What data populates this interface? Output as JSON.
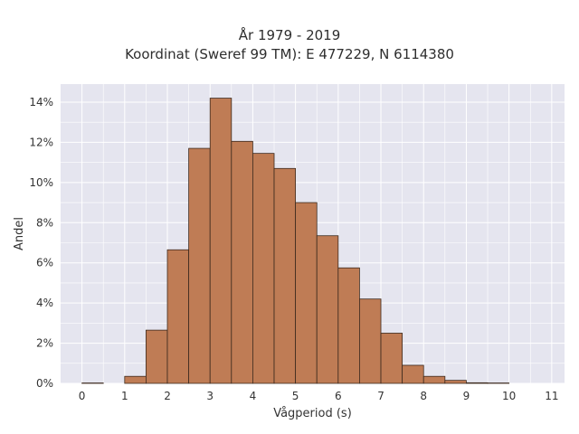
{
  "chart_data": {
    "type": "bar",
    "title": "År 1979 - 2019",
    "subtitle": "Koordinat (Sweref 99 TM): E 477229, N 6114380",
    "xlabel": "Vågperiod (s)",
    "ylabel": "Andel",
    "bin_width": 0.5,
    "bins": [
      {
        "start": 0.0,
        "end": 0.5,
        "value": 0.0002
      },
      {
        "start": 1.0,
        "end": 1.5,
        "value": 0.0035
      },
      {
        "start": 1.5,
        "end": 2.0,
        "value": 0.0265
      },
      {
        "start": 2.0,
        "end": 2.5,
        "value": 0.0665
      },
      {
        "start": 2.5,
        "end": 3.0,
        "value": 0.117
      },
      {
        "start": 3.0,
        "end": 3.5,
        "value": 0.142
      },
      {
        "start": 3.5,
        "end": 4.0,
        "value": 0.1205
      },
      {
        "start": 4.0,
        "end": 4.5,
        "value": 0.1145
      },
      {
        "start": 4.5,
        "end": 5.0,
        "value": 0.107
      },
      {
        "start": 5.0,
        "end": 5.5,
        "value": 0.09
      },
      {
        "start": 5.5,
        "end": 6.0,
        "value": 0.0735
      },
      {
        "start": 6.0,
        "end": 6.5,
        "value": 0.0575
      },
      {
        "start": 6.5,
        "end": 7.0,
        "value": 0.042
      },
      {
        "start": 7.0,
        "end": 7.5,
        "value": 0.025
      },
      {
        "start": 7.5,
        "end": 8.0,
        "value": 0.009
      },
      {
        "start": 8.0,
        "end": 8.5,
        "value": 0.0035
      },
      {
        "start": 8.5,
        "end": 9.0,
        "value": 0.0015
      },
      {
        "start": 9.0,
        "end": 9.5,
        "value": 0.0003
      },
      {
        "start": 9.5,
        "end": 10.0,
        "value": 0.0002
      }
    ],
    "xlim": [
      -0.5,
      11.3
    ],
    "ylim": [
      0,
      0.149
    ],
    "xticks": [
      0,
      1,
      2,
      3,
      4,
      5,
      6,
      7,
      8,
      9,
      10,
      11
    ],
    "xtick_labels": [
      "0",
      "1",
      "2",
      "3",
      "4",
      "5",
      "6",
      "7",
      "8",
      "9",
      "10",
      "11"
    ],
    "yticks": [
      0,
      0.02,
      0.04,
      0.06,
      0.08,
      0.1,
      0.12,
      0.14
    ],
    "ytick_labels": [
      "0%",
      "2%",
      "4%",
      "6%",
      "8%",
      "10%",
      "12%",
      "14%"
    ],
    "grid": true,
    "legend": "none",
    "colors": {
      "bar_fill": "#bf7c55",
      "bar_edge": "#3d2a1e",
      "plot_background": "#e5e5ef",
      "grid": "#ffffff"
    }
  }
}
